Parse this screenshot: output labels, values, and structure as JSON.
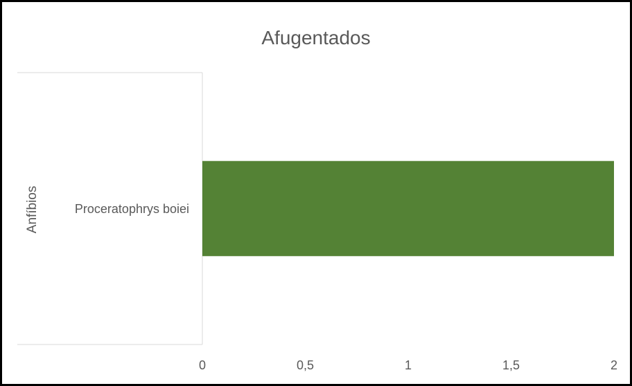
{
  "chart_data": {
    "type": "bar",
    "orientation": "horizontal",
    "title": "Afugentados",
    "group_label": "Anfíbios",
    "categories": [
      "Proceratophrys boiei"
    ],
    "values": [
      2
    ],
    "xlim": [
      0,
      2
    ],
    "x_ticks": [
      "0",
      "0,5",
      "1",
      "1,5",
      "2"
    ],
    "bar_color": "#548235",
    "grid": false,
    "legend": "none"
  }
}
